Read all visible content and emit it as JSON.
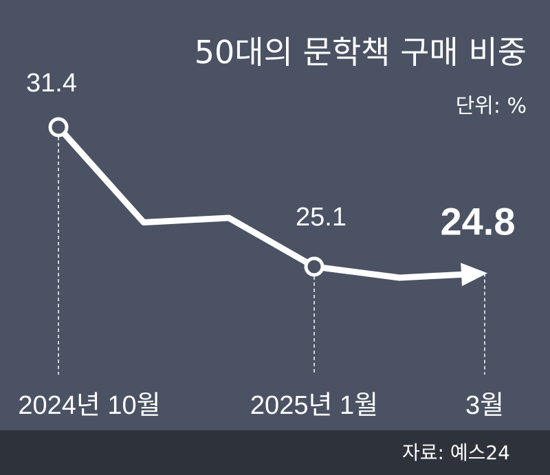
{
  "colors": {
    "background": "#4a5263",
    "footer_background": "#2e323b",
    "line": "#ffffff",
    "marker_fill": "#4a5263"
  },
  "chart_data": {
    "type": "line",
    "title": "50대의 문학책 구매 비중",
    "unit_label": "단위: %",
    "source": "자료: 예스24",
    "x_labels": [
      "2024년 10월",
      "2025년 1월",
      "3월"
    ],
    "series": [
      {
        "points": [
          {
            "x": "2024-10",
            "y": 31.4
          },
          {
            "x": "2024-11",
            "y": 27.1
          },
          {
            "x": "2024-12",
            "y": 27.3
          },
          {
            "x": "2025-01",
            "y": 25.1
          },
          {
            "x": "2025-02",
            "y": 24.6
          },
          {
            "x": "2025-03",
            "y": 24.8
          }
        ]
      }
    ],
    "annotations": [
      {
        "x": "2024-10",
        "text": "31.4",
        "marker": "circle"
      },
      {
        "x": "2025-01",
        "text": "25.1",
        "marker": "circle"
      },
      {
        "x": "2025-03",
        "text": "24.8",
        "marker": "arrow"
      }
    ],
    "grid": false,
    "legend": false
  }
}
